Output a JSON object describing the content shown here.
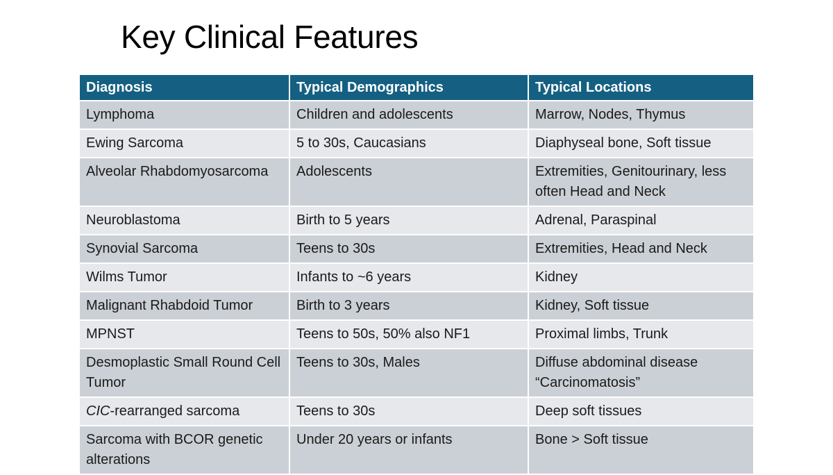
{
  "slide": {
    "title": "Key Clinical Features"
  },
  "table": {
    "headers": [
      "Diagnosis",
      "Typical Demographics",
      "Typical Locations"
    ],
    "rows": [
      {
        "diagnosis": "Lymphoma",
        "demographics": "Children and adolescents",
        "locations": "Marrow, Nodes, Thymus"
      },
      {
        "diagnosis": "Ewing Sarcoma",
        "demographics": "5 to 30s, Caucasians",
        "locations": "Diaphyseal bone, Soft tissue"
      },
      {
        "diagnosis": "Alveolar Rhabdomyosarcoma",
        "demographics": "Adolescents",
        "locations": "Extremities, Genitourinary, less often Head and Neck"
      },
      {
        "diagnosis": "Neuroblastoma",
        "demographics": "Birth to 5 years",
        "locations": "Adrenal, Paraspinal"
      },
      {
        "diagnosis": "Synovial Sarcoma",
        "demographics": "Teens to 30s",
        "locations": "Extremities, Head and Neck"
      },
      {
        "diagnosis": "Wilms Tumor",
        "demographics": "Infants to ~6 years",
        "locations": "Kidney"
      },
      {
        "diagnosis": "Malignant Rhabdoid Tumor",
        "demographics": "Birth to 3 years",
        "locations": "Kidney, Soft tissue"
      },
      {
        "diagnosis": "MPNST",
        "demographics": "Teens to 50s, 50% also NF1",
        "locations": "Proximal limbs, Trunk"
      },
      {
        "diagnosis": "Desmoplastic Small Round Cell Tumor",
        "demographics": "Teens to 30s, Males",
        "locations": "Diffuse abdominal disease “Carcinomatosis”"
      },
      {
        "diagnosis_italic": "CIC",
        "diagnosis_rest": "-rearranged sarcoma",
        "demographics": "Teens to 30s",
        "locations": "Deep soft tissues"
      },
      {
        "diagnosis": "Sarcoma with BCOR genetic alterations",
        "demographics": "Under 20 years or infants",
        "locations": "Bone > Soft tissue"
      }
    ]
  },
  "colors": {
    "header_bg": "#156082",
    "row_dark": "#cbd0d6",
    "row_light": "#e6e8ec"
  }
}
